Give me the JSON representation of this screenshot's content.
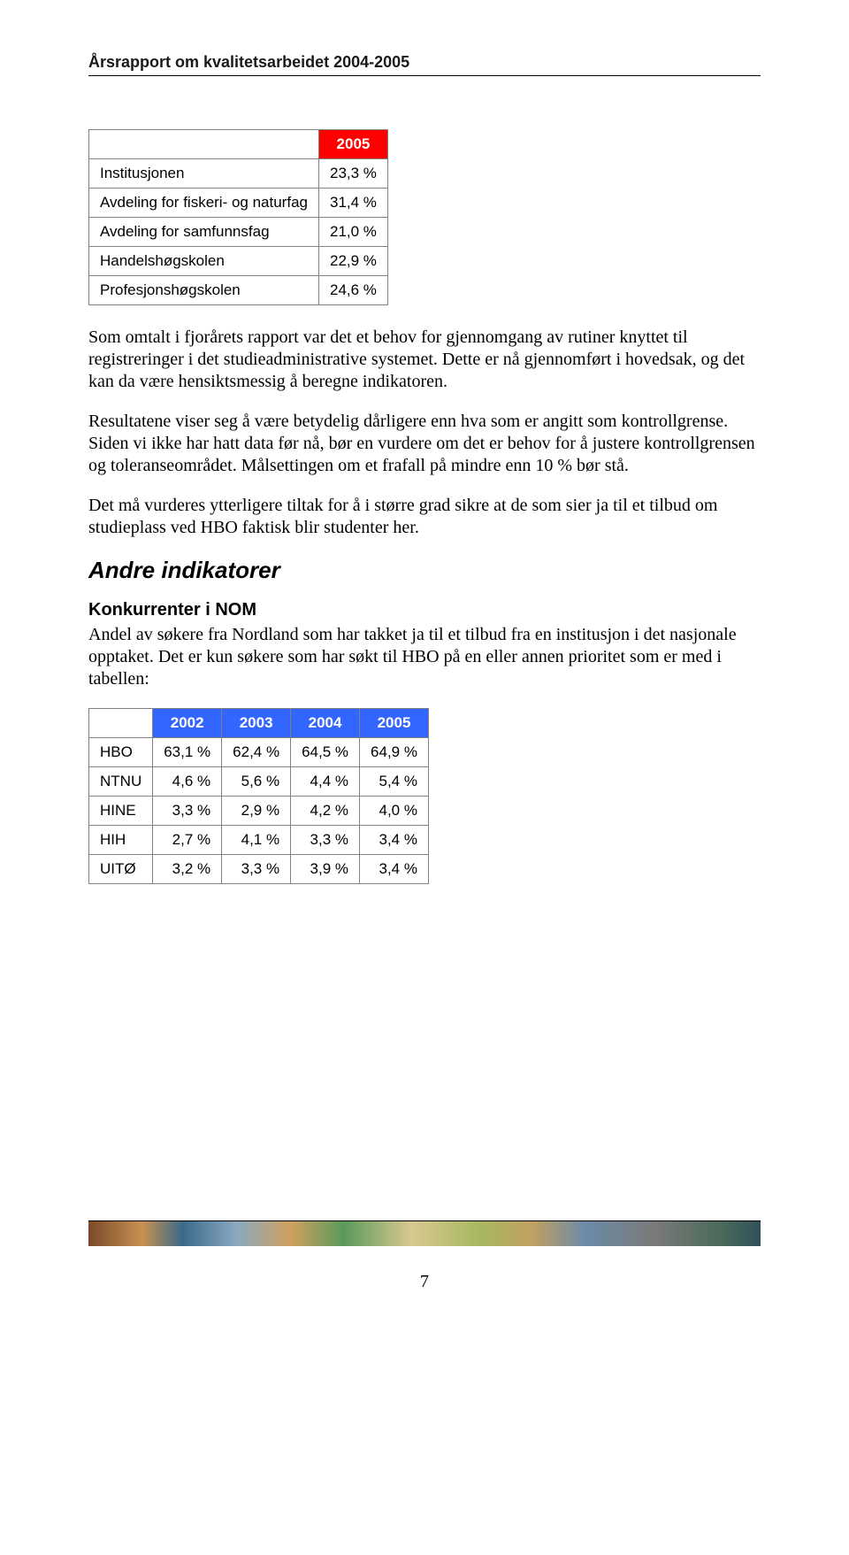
{
  "header": {
    "title": "Årsrapport om kvalitetsarbeidet 2004-2005"
  },
  "table1": {
    "header_color": "#ff0000",
    "border_color": "#808080",
    "columns": [
      "",
      "2005"
    ],
    "rows": [
      {
        "label": "Institusjonen",
        "value": "23,3 %"
      },
      {
        "label": "Avdeling for fiskeri- og naturfag",
        "value": "31,4 %"
      },
      {
        "label": "Avdeling for samfunnsfag",
        "value": "21,0 %"
      },
      {
        "label": "Handelshøgskolen",
        "value": "22,9 %"
      },
      {
        "label": "Profesjonshøgskolen",
        "value": "24,6 %"
      }
    ]
  },
  "paragraphs": {
    "p1": "Som omtalt i fjorårets rapport var det et behov for gjennomgang av rutiner knyttet til registreringer i det studieadministrative systemet. Dette er nå gjennomført i hovedsak, og det kan da være hensiktsmessig å beregne indikatoren.",
    "p2": "Resultatene viser seg å være betydelig dårligere enn hva som er angitt som kontrollgrense. Siden vi ikke har hatt data før nå, bør en vurdere om det er behov for å justere kontrollgrensen og toleranseområdet. Målsettingen om et frafall på mindre enn 10 % bør stå.",
    "p3": "Det må vurderes ytterligere tiltak for å i større grad sikre at de som sier ja til et tilbud om studieplass ved HBO faktisk blir studenter her.",
    "p4": "Andel av søkere fra Nordland som har takket ja til et tilbud fra en institusjon i det nasjonale opptaket. Det er kun søkere som har søkt til HBO på en eller annen prioritet som er med i tabellen:"
  },
  "section_heading": "Andre indikatorer",
  "subsection_heading": "Konkurrenter i NOM",
  "table2": {
    "header_color": "#3366ff",
    "border_color": "#808080",
    "columns": [
      "",
      "2002",
      "2003",
      "2004",
      "2005"
    ],
    "rows": [
      {
        "label": "HBO",
        "v": [
          "63,1 %",
          "62,4 %",
          "64,5 %",
          "64,9 %"
        ]
      },
      {
        "label": "NTNU",
        "v": [
          "4,6 %",
          "5,6 %",
          "4,4 %",
          "5,4 %"
        ]
      },
      {
        "label": "HINE",
        "v": [
          "3,3 %",
          "2,9 %",
          "4,2 %",
          "4,0 %"
        ]
      },
      {
        "label": "HIH",
        "v": [
          "2,7 %",
          "4,1 %",
          "3,3 %",
          "3,4 %"
        ]
      },
      {
        "label": "UITØ",
        "v": [
          "3,2 %",
          "3,3 %",
          "3,9 %",
          "3,4 %"
        ]
      }
    ]
  },
  "page_number": "7"
}
